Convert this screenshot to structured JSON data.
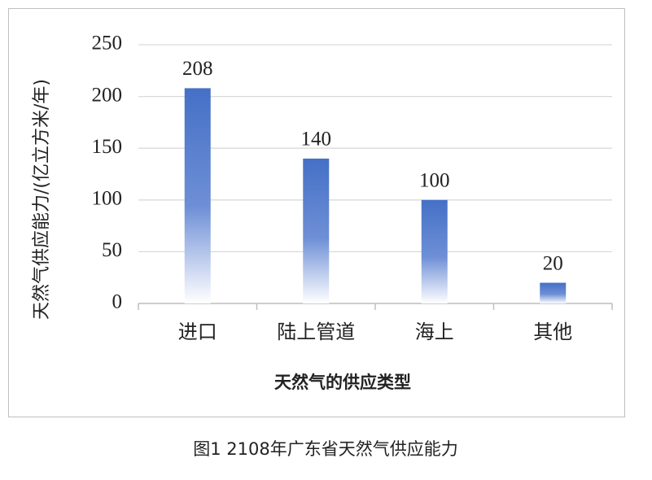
{
  "chart_data": {
    "type": "bar",
    "caption": "图1 2108年广东省天然气供应能力",
    "xlabel": "天然气的供应类型",
    "ylabel": "天然气供应能力/(亿立方米/年)",
    "categories": [
      "进口",
      "陆上管道",
      "海上",
      "其他"
    ],
    "values": [
      208,
      140,
      100,
      20
    ],
    "color": "#4570c6",
    "ylim": [
      0,
      250
    ],
    "yticks": [
      0,
      50,
      100,
      150,
      200,
      250
    ],
    "grid": true
  }
}
